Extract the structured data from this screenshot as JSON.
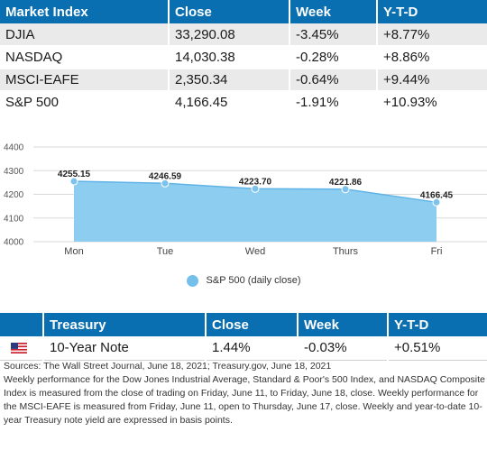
{
  "markets": {
    "headers": [
      "Market Index",
      "Close",
      "Week",
      "Y-T-D"
    ],
    "rows": [
      {
        "name": "DJIA",
        "close": "33,290.08",
        "week": "-3.45%",
        "ytd": "+8.77%"
      },
      {
        "name": "NASDAQ",
        "close": "14,030.38",
        "week": "-0.28%",
        "ytd": "+8.86%"
      },
      {
        "name": "MSCI-EAFE",
        "close": "2,350.34",
        "week": "-0.64%",
        "ytd": "+9.44%"
      },
      {
        "name": "S&P 500",
        "close": "4,166.45",
        "week": "-1.91%",
        "ytd": "+10.93%"
      }
    ]
  },
  "chart_data": {
    "type": "area",
    "categories": [
      "Mon",
      "Tue",
      "Wed",
      "Thurs",
      "Fri"
    ],
    "series": [
      {
        "name": "S&P 500 (daily close)",
        "values": [
          4255.15,
          4246.59,
          4223.7,
          4221.86,
          4166.45
        ]
      }
    ],
    "data_labels": [
      "4255.15",
      "4246.59",
      "4223.70",
      "4221.86",
      "4166.45"
    ],
    "y_ticks": [
      "4000",
      "4100",
      "4200",
      "4300",
      "4400"
    ],
    "ylim": [
      4000,
      4400
    ],
    "grid": true,
    "legend_position": "bottom",
    "fill_color": "#8dcdf0",
    "line_color": "#5fb3e6",
    "marker_color": "#7cc2ec"
  },
  "legend": {
    "label": "S&P 500 (daily close)",
    "color": "#75c0ea"
  },
  "treasury": {
    "headers": [
      "Treasury",
      "Close",
      "Week",
      "Y-T-D"
    ],
    "row": {
      "name": "10-Year Note",
      "close": "1.44%",
      "week": "-0.03%",
      "ytd": "+0.51%"
    },
    "flag_icon": "us-flag-icon"
  },
  "notes": {
    "sources": "Sources: The Wall Street Journal, June 18, 2021; Treasury.gov, June 18, 2021",
    "body": "Weekly performance for the Dow Jones Industrial Average, Standard & Poor's 500 Index, and NASDAQ Composite Index is measured from the close of trading on Friday, June 11, to Friday, June 18, close. Weekly performance for the MSCI-EAFE is measured from Friday, June 11, open to Thursday, June 17, close. Weekly and year-to-date 10-year Treasury note yield are expressed in basis points."
  },
  "colors": {
    "header_blue": "#0a6fb0",
    "row_gray": "#eaeaea"
  }
}
